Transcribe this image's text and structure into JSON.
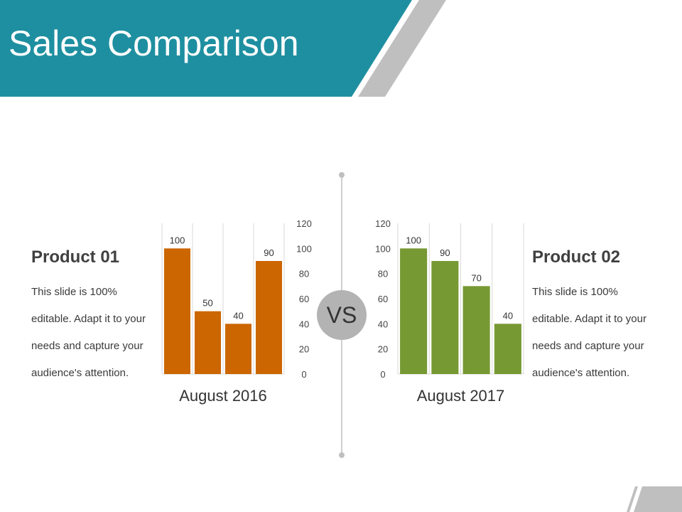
{
  "slide": {
    "title": "Sales Comparison",
    "vs_label": "VS",
    "colors": {
      "title_band": "#1e8fa0",
      "deco_gray": "#bfbfbf",
      "text_dark": "#404040"
    }
  },
  "products": [
    {
      "name": "Product 01",
      "lines": [
        "This slide is 100%",
        "editable. Adapt it to your",
        "needs and capture your",
        "audience's attention."
      ]
    },
    {
      "name": "Product 02",
      "lines": [
        "This slide is 100%",
        "editable. Adapt it to your",
        "needs and capture your",
        "audience's attention."
      ]
    }
  ],
  "chart_data": [
    {
      "type": "bar",
      "title": "",
      "category_label": "August 2016",
      "values": [
        100,
        50,
        40,
        90
      ],
      "ylim": [
        0,
        120
      ],
      "y_ticks": [
        0,
        20,
        40,
        60,
        80,
        100,
        120
      ],
      "axis_side": "right",
      "color": "#cc6600",
      "grid": true
    },
    {
      "type": "bar",
      "title": "",
      "category_label": "August 2017",
      "values": [
        100,
        90,
        70,
        40
      ],
      "ylim": [
        0,
        120
      ],
      "y_ticks": [
        0,
        20,
        40,
        60,
        80,
        100,
        120
      ],
      "axis_side": "left",
      "color": "#779933",
      "grid": true
    }
  ]
}
